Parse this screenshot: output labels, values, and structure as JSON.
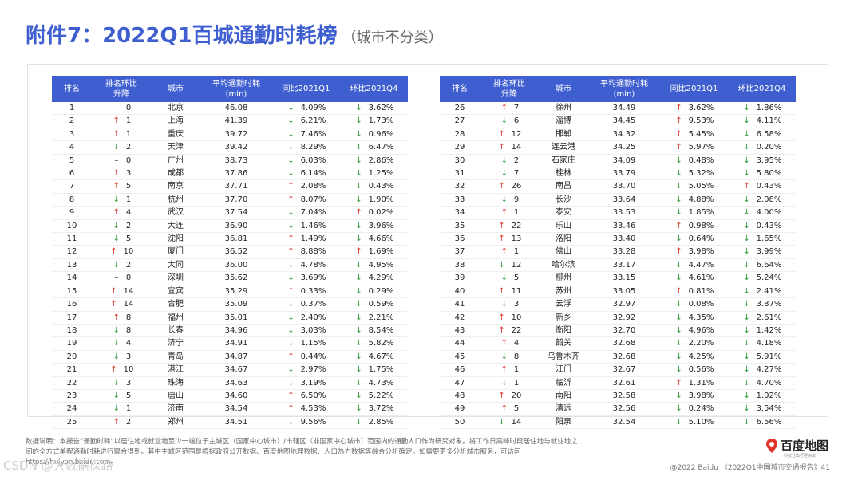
{
  "title": "附件7：2022Q1百城通勤时耗榜",
  "subtitle": "（城市不分类）",
  "headers": [
    "排名",
    "排名环比\n升降",
    "城市",
    "平均通勤时耗\n(min)",
    "同比2021Q1",
    "环比2021Q4"
  ],
  "left_rows": [
    [
      "1",
      "flat",
      "0",
      "北京",
      "46.08",
      "down",
      "4.09%",
      "down",
      "3.62%"
    ],
    [
      "2",
      "up",
      "1",
      "上海",
      "41.39",
      "down",
      "6.21%",
      "down",
      "1.73%"
    ],
    [
      "3",
      "up",
      "1",
      "重庆",
      "39.72",
      "down",
      "7.46%",
      "down",
      "0.96%"
    ],
    [
      "4",
      "down",
      "2",
      "天津",
      "39.42",
      "down",
      "8.29%",
      "down",
      "6.47%"
    ],
    [
      "5",
      "flat",
      "0",
      "广州",
      "38.73",
      "down",
      "6.03%",
      "down",
      "2.86%"
    ],
    [
      "6",
      "up",
      "3",
      "成都",
      "37.86",
      "down",
      "6.14%",
      "down",
      "1.25%"
    ],
    [
      "7",
      "up",
      "5",
      "南京",
      "37.71",
      "up",
      "2.08%",
      "down",
      "0.43%"
    ],
    [
      "8",
      "down",
      "1",
      "杭州",
      "37.70",
      "up",
      "8.07%",
      "down",
      "1.90%"
    ],
    [
      "9",
      "up",
      "4",
      "武汉",
      "37.54",
      "down",
      "7.04%",
      "up",
      "0.02%"
    ],
    [
      "10",
      "down",
      "2",
      "大连",
      "36.90",
      "down",
      "1.46%",
      "down",
      "3.96%"
    ],
    [
      "11",
      "down",
      "5",
      "沈阳",
      "36.81",
      "up",
      "1.49%",
      "down",
      "4.66%"
    ],
    [
      "12",
      "up",
      "10",
      "厦门",
      "36.52",
      "up",
      "8.88%",
      "up",
      "1.69%"
    ],
    [
      "13",
      "down",
      "2",
      "大同",
      "36.00",
      "down",
      "4.78%",
      "down",
      "4.95%"
    ],
    [
      "14",
      "flat",
      "0",
      "深圳",
      "35.62",
      "down",
      "3.69%",
      "down",
      "4.29%"
    ],
    [
      "15",
      "up",
      "14",
      "宜宾",
      "35.29",
      "up",
      "0.33%",
      "down",
      "0.29%"
    ],
    [
      "16",
      "up",
      "14",
      "合肥",
      "35.09",
      "down",
      "0.37%",
      "down",
      "0.59%"
    ],
    [
      "17",
      "up",
      "8",
      "福州",
      "35.01",
      "down",
      "2.40%",
      "down",
      "2.21%"
    ],
    [
      "18",
      "down",
      "8",
      "长春",
      "34.96",
      "down",
      "3.03%",
      "down",
      "8.54%"
    ],
    [
      "19",
      "down",
      "4",
      "济宁",
      "34.91",
      "down",
      "1.15%",
      "down",
      "5.82%"
    ],
    [
      "20",
      "down",
      "3",
      "青岛",
      "34.87",
      "up",
      "0.44%",
      "down",
      "4.67%"
    ],
    [
      "21",
      "up",
      "10",
      "湛江",
      "34.67",
      "down",
      "2.97%",
      "down",
      "1.75%"
    ],
    [
      "22",
      "down",
      "3",
      "珠海",
      "34.63",
      "down",
      "3.19%",
      "down",
      "4.73%"
    ],
    [
      "23",
      "down",
      "5",
      "唐山",
      "34.60",
      "up",
      "6.50%",
      "down",
      "5.22%"
    ],
    [
      "24",
      "down",
      "1",
      "济南",
      "34.54",
      "up",
      "4.53%",
      "down",
      "3.72%"
    ],
    [
      "25",
      "up",
      "2",
      "郑州",
      "34.51",
      "down",
      "9.56%",
      "down",
      "2.85%"
    ]
  ],
  "right_rows": [
    [
      "26",
      "up",
      "7",
      "徐州",
      "34.49",
      "up",
      "3.62%",
      "down",
      "1.86%"
    ],
    [
      "27",
      "down",
      "6",
      "淄博",
      "34.45",
      "up",
      "9.53%",
      "down",
      "4.11%"
    ],
    [
      "28",
      "up",
      "12",
      "邯郸",
      "34.32",
      "up",
      "5.45%",
      "down",
      "6.58%"
    ],
    [
      "29",
      "up",
      "14",
      "连云港",
      "34.25",
      "up",
      "5.97%",
      "down",
      "0.20%"
    ],
    [
      "30",
      "down",
      "2",
      "石家庄",
      "34.09",
      "down",
      "0.48%",
      "down",
      "3.95%"
    ],
    [
      "31",
      "down",
      "7",
      "桂林",
      "33.79",
      "down",
      "5.32%",
      "down",
      "5.80%"
    ],
    [
      "32",
      "up",
      "26",
      "南昌",
      "33.70",
      "down",
      "5.05%",
      "up",
      "0.43%"
    ],
    [
      "33",
      "down",
      "9",
      "长沙",
      "33.64",
      "down",
      "4.88%",
      "down",
      "2.08%"
    ],
    [
      "34",
      "up",
      "1",
      "泰安",
      "33.53",
      "down",
      "1.85%",
      "down",
      "4.00%"
    ],
    [
      "35",
      "up",
      "22",
      "乐山",
      "33.46",
      "up",
      "0.98%",
      "down",
      "0.43%"
    ],
    [
      "36",
      "up",
      "13",
      "洛阳",
      "33.40",
      "down",
      "0.64%",
      "down",
      "1.65%"
    ],
    [
      "37",
      "up",
      "1",
      "佛山",
      "33.28",
      "up",
      "3.98%",
      "down",
      "3.99%"
    ],
    [
      "38",
      "down",
      "12",
      "哈尔滨",
      "33.17",
      "down",
      "4.47%",
      "down",
      "6.64%"
    ],
    [
      "39",
      "down",
      "5",
      "柳州",
      "33.15",
      "down",
      "4.61%",
      "down",
      "5.24%"
    ],
    [
      "40",
      "up",
      "11",
      "苏州",
      "33.05",
      "up",
      "0.81%",
      "down",
      "2.41%"
    ],
    [
      "41",
      "down",
      "3",
      "云浮",
      "32.97",
      "down",
      "0.08%",
      "down",
      "3.87%"
    ],
    [
      "42",
      "up",
      "10",
      "新乡",
      "32.92",
      "down",
      "4.35%",
      "down",
      "2.61%"
    ],
    [
      "43",
      "up",
      "22",
      "衡阳",
      "32.70",
      "down",
      "4.96%",
      "down",
      "1.42%"
    ],
    [
      "44",
      "up",
      "4",
      "韶关",
      "32.68",
      "down",
      "2.20%",
      "down",
      "4.18%"
    ],
    [
      "45",
      "down",
      "8",
      "乌鲁木齐",
      "32.68",
      "down",
      "4.25%",
      "down",
      "5.91%"
    ],
    [
      "46",
      "up",
      "1",
      "江门",
      "32.67",
      "down",
      "0.56%",
      "down",
      "4.27%"
    ],
    [
      "47",
      "down",
      "1",
      "临沂",
      "32.61",
      "up",
      "1.31%",
      "down",
      "4.70%"
    ],
    [
      "48",
      "up",
      "20",
      "南阳",
      "32.58",
      "down",
      "3.98%",
      "down",
      "1.02%"
    ],
    [
      "49",
      "up",
      "5",
      "清远",
      "32.56",
      "down",
      "0.24%",
      "down",
      "3.54%"
    ],
    [
      "50",
      "down",
      "14",
      "阳泉",
      "32.54",
      "down",
      "5.10%",
      "down",
      "6.56%"
    ]
  ],
  "note": "数据说明：本报告“通勤时耗”以居住地或就业地至少一端位于主城区（国家中心城市）/市辖区（非国家中心城市）范围内的通勤人口作为研究对象。将工作日高峰时段居住地与就业地之间的全方式单程通勤时耗进行聚合得到。其中主城区范围是根据政府公开数据、百度地图地理数据、人口热力数据等综合分析确定。如需要更多分析城市服务，可访问 https://huiyan.baidu.com。",
  "logo_text": "百度地图",
  "logo_slogan": "科技让出行更简单",
  "footer": "@2022 Baidu 《2022Q1中国城市交通报告》41",
  "watermark": "CSDN @大数据探路",
  "colors": {
    "header_bg": "#3f5fd0",
    "up": "#e0342a",
    "down": "#2e9a3a"
  },
  "arrows": {
    "up": "↑",
    "down": "↓",
    "flat": "–"
  }
}
